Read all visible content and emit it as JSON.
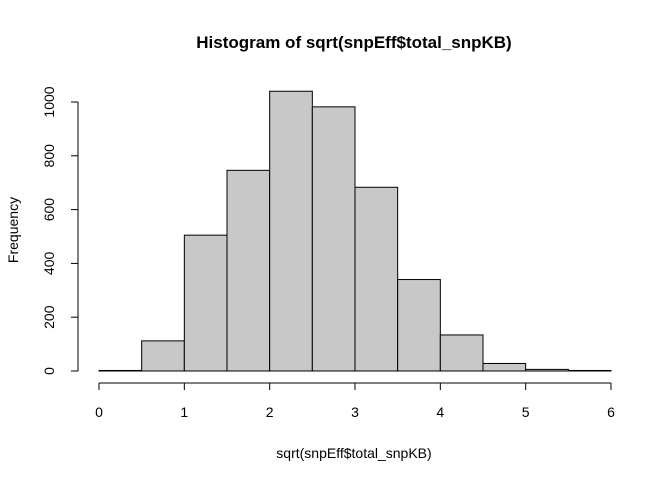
{
  "chart_data": {
    "type": "bar",
    "title": "Histogram of sqrt(snpEff$total_snpKB)",
    "xlabel": "sqrt(snpEff$total_snpKB)",
    "ylabel": "Frequency",
    "xlim": [
      0,
      6
    ],
    "ylim": [
      0,
      1000
    ],
    "x_ticks": [
      "0",
      "1",
      "2",
      "3",
      "4",
      "5",
      "6"
    ],
    "y_ticks": [
      "0",
      "200",
      "400",
      "600",
      "800",
      "1000"
    ],
    "bin_edges": [
      0,
      0.5,
      1,
      1.5,
      2,
      2.5,
      3,
      3.5,
      4,
      4.5,
      5,
      5.5,
      6
    ],
    "values": [
      2,
      112,
      505,
      746,
      1040,
      982,
      683,
      340,
      134,
      28,
      6,
      2
    ],
    "bar_color": "#c8c8c8",
    "grid": false
  }
}
